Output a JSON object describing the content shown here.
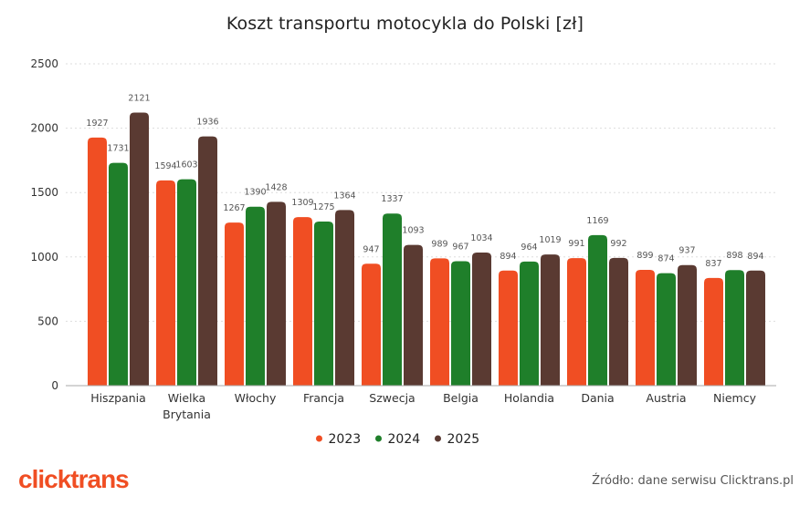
{
  "chart_data": {
    "type": "bar",
    "title": "Koszt transportu motocykla do Polski [zł]",
    "categories": [
      "Hiszpania",
      "Wielka Brytania",
      "Włochy",
      "Francja",
      "Szwecja",
      "Belgia",
      "Holandia",
      "Dania",
      "Austria",
      "Niemcy"
    ],
    "category_lines": [
      [
        "Hiszpania"
      ],
      [
        "Wielka",
        "Brytania"
      ],
      [
        "Włochy"
      ],
      [
        "Francja"
      ],
      [
        "Szwecja"
      ],
      [
        "Belgia"
      ],
      [
        "Holandia"
      ],
      [
        "Dania"
      ],
      [
        "Austria"
      ],
      [
        "Niemcy"
      ]
    ],
    "series": [
      {
        "name": "2023",
        "color": "#f04e23",
        "values": [
          1927,
          1594,
          1267,
          1309,
          947,
          989,
          894,
          991,
          899,
          837
        ]
      },
      {
        "name": "2024",
        "color": "#1f7f2a",
        "values": [
          1731,
          1603,
          1390,
          1275,
          1337,
          967,
          964,
          1169,
          874,
          898
        ]
      },
      {
        "name": "2025",
        "color": "#5a3a32",
        "values": [
          2121,
          1936,
          1428,
          1364,
          1093,
          1034,
          1019,
          992,
          937,
          894
        ]
      }
    ],
    "ylim": [
      0,
      2500
    ],
    "yticks": [
      0,
      500,
      1000,
      1500,
      2000,
      2500
    ],
    "grid": true,
    "legend": "bottom-center",
    "xlabel": "",
    "ylabel": ""
  },
  "footer": {
    "logo_text": "clicktrans",
    "source": "Źródło: dane serwisu Clicktrans.pl"
  }
}
